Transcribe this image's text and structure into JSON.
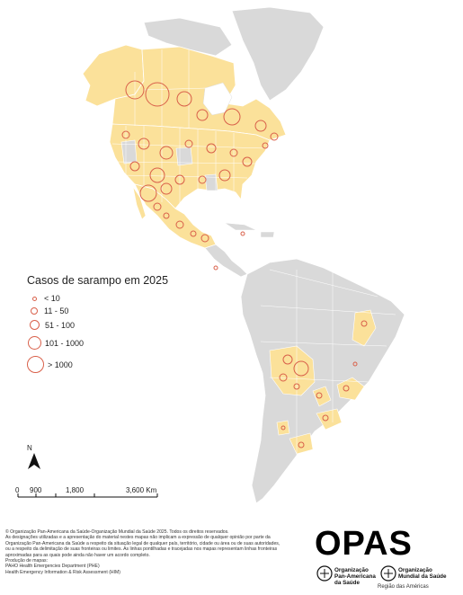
{
  "legend": {
    "title": "Casos de sarampo em 2025",
    "items": [
      {
        "label": "< 10"
      },
      {
        "label": "11 - 50"
      },
      {
        "label": "51 - 100"
      },
      {
        "label": "101 - 1000"
      },
      {
        "label": "> 1000"
      }
    ]
  },
  "scale": {
    "ticks": [
      "0",
      "900",
      "1,800",
      "3,600 Km"
    ]
  },
  "north_label": "N",
  "footer": {
    "line1": "© Organização Pan-Americana da Saúde-Organização Mundial da Saúde 2025. Todos os direitos reservados.",
    "line2": "As designações utilizadas e a apresentação do material nestes mapas não implicam a expressão de qualquer opinião por parte da",
    "line3": "Organização Pan-Americana da Saúde a respeito da situação legal de qualquer país, território, cidade ou área ou de suas autoridades,",
    "line4": "ou a respeito da delimitação de suas fronteiras ou limites. As linhas pontilhadas e tracejadas nos mapas representam linhas fronteiras",
    "line5": "aproximadas para as quais pode ainda não haver um acordo completo.",
    "line6": "Produção de mapas:",
    "line7": "PAHO Health Emergencies Department (PHE)",
    "line8": "Health Emergency Information & Risk Assessment (HIM)"
  },
  "logos": {
    "opas": "OPAS",
    "ops_line1": "Organização",
    "ops_line2": "Pan-Americana",
    "ops_line3": "da Saúde",
    "oms_line1": "Organização",
    "oms_line2": "Mundial da Saúde",
    "region": "Região das Américas"
  },
  "colors": {
    "affected_fill": "#fbe19a",
    "unaffected_fill": "#d9d9d9",
    "border": "#ffffff",
    "circle_stroke": "#d9604a",
    "water": "#ffffff"
  }
}
